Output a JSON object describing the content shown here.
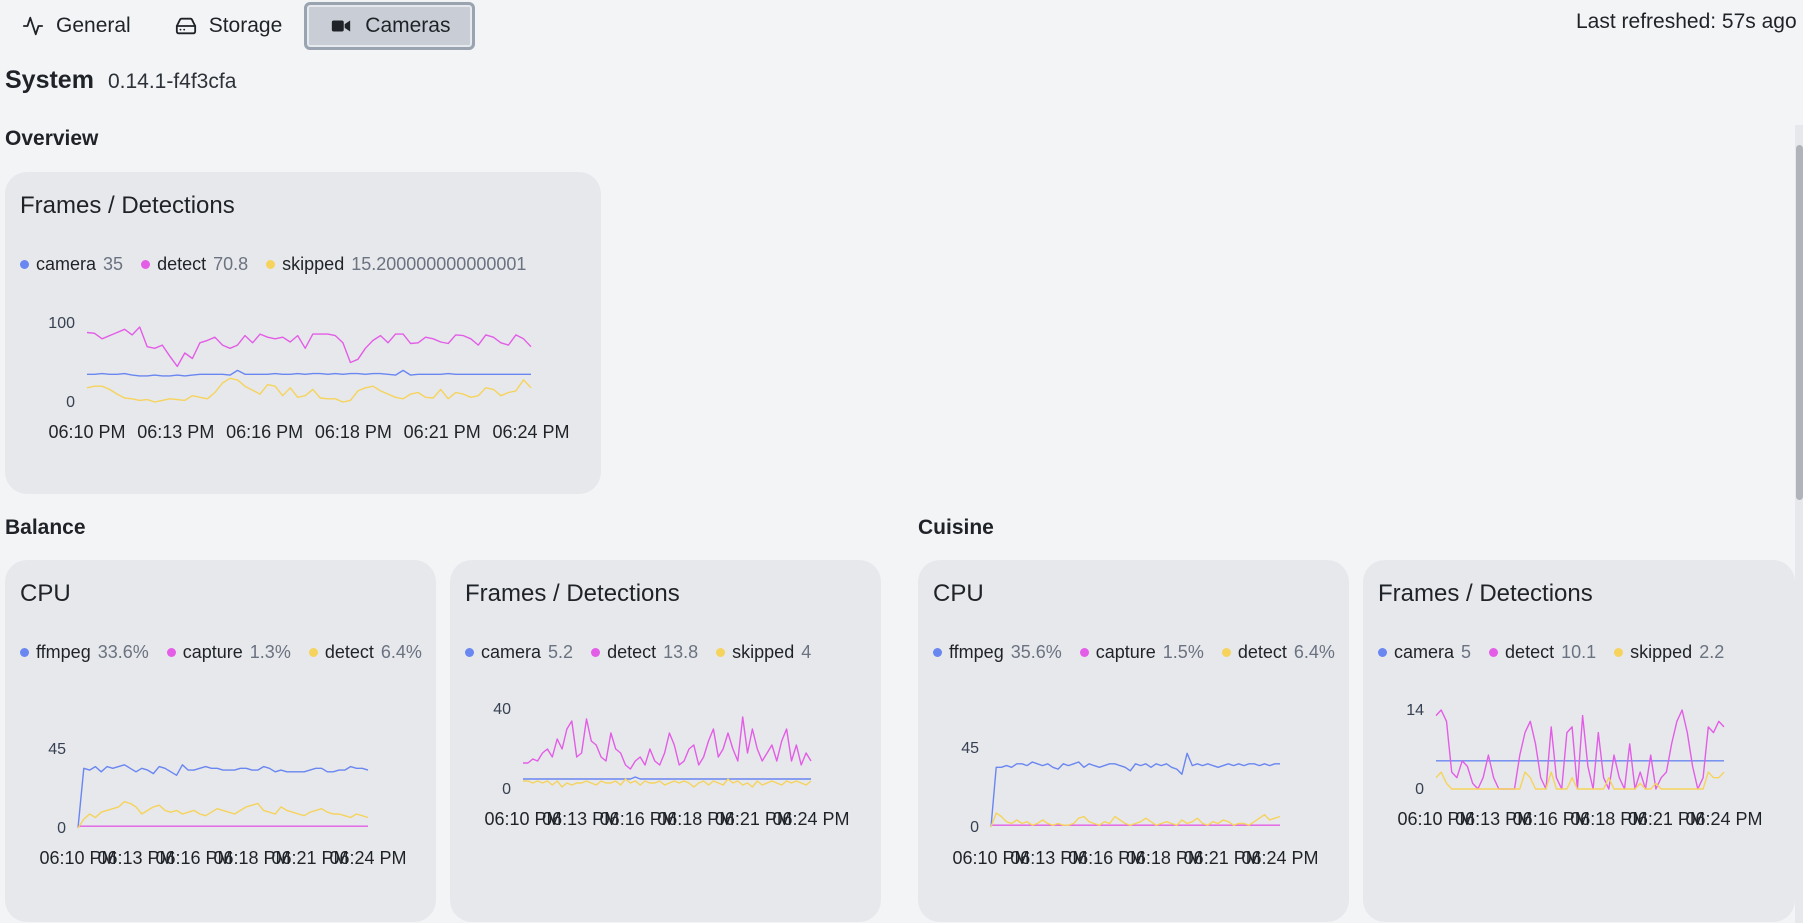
{
  "tabs": [
    {
      "label": "General",
      "icon": "activity-icon"
    },
    {
      "label": "Storage",
      "icon": "hard-drive-icon"
    },
    {
      "label": "Cameras",
      "icon": "video-camera-icon",
      "active": true
    }
  ],
  "last_refreshed": "Last refreshed: 57s ago",
  "system": {
    "title": "System",
    "version": "0.14.1-f4f3cfa"
  },
  "colors": {
    "blue": "#6a86f0",
    "magenta": "#e35de6",
    "yellow": "#f6d35c"
  },
  "sections": {
    "overview": "Overview",
    "balance": "Balance",
    "cuisine": "Cuisine"
  },
  "cards": {
    "overview_frames": {
      "title": "Frames / Detections",
      "legend": [
        {
          "name": "camera",
          "value": "35",
          "color": "#6a86f0"
        },
        {
          "name": "detect",
          "value": "70.8",
          "color": "#e35de6"
        },
        {
          "name": "skipped",
          "value": "15.200000000000001",
          "color": "#f6d35c"
        }
      ]
    },
    "balance_cpu": {
      "title": "CPU",
      "legend": [
        {
          "name": "ffmpeg",
          "value": "33.6%",
          "color": "#6a86f0"
        },
        {
          "name": "capture",
          "value": "1.3%",
          "color": "#e35de6"
        },
        {
          "name": "detect",
          "value": "6.4%",
          "color": "#f6d35c"
        }
      ]
    },
    "balance_frames": {
      "title": "Frames / Detections",
      "legend": [
        {
          "name": "camera",
          "value": "5.2",
          "color": "#6a86f0"
        },
        {
          "name": "detect",
          "value": "13.8",
          "color": "#e35de6"
        },
        {
          "name": "skipped",
          "value": "4",
          "color": "#f6d35c"
        }
      ]
    },
    "cuisine_cpu": {
      "title": "CPU",
      "legend": [
        {
          "name": "ffmpeg",
          "value": "35.6%",
          "color": "#6a86f0"
        },
        {
          "name": "capture",
          "value": "1.5%",
          "color": "#e35de6"
        },
        {
          "name": "detect",
          "value": "6.4%",
          "color": "#f6d35c"
        }
      ]
    },
    "cuisine_frames": {
      "title": "Frames / Detections",
      "legend": [
        {
          "name": "camera",
          "value": "5",
          "color": "#6a86f0"
        },
        {
          "name": "detect",
          "value": "10.1",
          "color": "#e35de6"
        },
        {
          "name": "skipped",
          "value": "2.2",
          "color": "#f6d35c"
        }
      ]
    }
  },
  "chart_data": [
    {
      "id": "overview_frames",
      "type": "line",
      "title": "Frames / Detections",
      "xlabel": "",
      "ylabel": "",
      "x_ticks": [
        "06:10 PM",
        "06:13 PM",
        "06:16 PM",
        "06:18 PM",
        "06:21 PM",
        "06:24 PM"
      ],
      "y_ticks": [
        "0",
        "100"
      ],
      "ylim": [
        0,
        100
      ],
      "series": [
        {
          "name": "camera",
          "color": "#6a86f0",
          "values": [
            35,
            35,
            36,
            35,
            35,
            36,
            34,
            33,
            33,
            34,
            33,
            33,
            34,
            33,
            34,
            35,
            35,
            35,
            35,
            34,
            40,
            35,
            35,
            35,
            35,
            36,
            35,
            35,
            36,
            35,
            36,
            36,
            35,
            36,
            35,
            36,
            36,
            35,
            36,
            36,
            35,
            34,
            40,
            34,
            35,
            35,
            35,
            35,
            36,
            35,
            35,
            35,
            35,
            35,
            35,
            35,
            35,
            35,
            35,
            35
          ]
        },
        {
          "name": "detect",
          "color": "#e35de6",
          "values": [
            88,
            87,
            80,
            84,
            88,
            92,
            85,
            95,
            70,
            68,
            72,
            58,
            45,
            62,
            55,
            75,
            78,
            82,
            72,
            68,
            72,
            84,
            75,
            86,
            82,
            80,
            82,
            76,
            84,
            68,
            86,
            86,
            86,
            84,
            75,
            50,
            54,
            68,
            78,
            84,
            75,
            86,
            86,
            74,
            75,
            82,
            80,
            76,
            74,
            85,
            84,
            80,
            72,
            85,
            82,
            75,
            72,
            85,
            80,
            70
          ]
        },
        {
          "name": "skipped",
          "color": "#f6d35c",
          "values": [
            18,
            20,
            20,
            16,
            10,
            5,
            4,
            2,
            3,
            0,
            2,
            4,
            3,
            2,
            8,
            6,
            4,
            12,
            24,
            30,
            28,
            20,
            15,
            10,
            22,
            20,
            8,
            18,
            6,
            8,
            16,
            5,
            4,
            4,
            0,
            2,
            14,
            18,
            20,
            14,
            10,
            6,
            4,
            10,
            12,
            6,
            5,
            16,
            4,
            12,
            10,
            6,
            8,
            18,
            16,
            8,
            12,
            14,
            28,
            18
          ]
        }
      ]
    },
    {
      "id": "balance_cpu",
      "type": "line",
      "title": "CPU",
      "x_ticks": [
        "06:10 PM",
        "06:13 PM",
        "06:16 PM",
        "06:18 PM",
        "06:21 PM",
        "06:24 PM"
      ],
      "y_ticks": [
        "0",
        "45"
      ],
      "ylim": [
        0,
        45
      ],
      "series": [
        {
          "name": "ffmpeg",
          "color": "#6a86f0",
          "values": [
            0,
            34,
            33,
            35,
            32,
            35,
            34,
            35,
            36,
            34,
            32,
            34,
            33,
            31,
            35,
            34,
            32,
            30,
            36,
            33,
            33,
            34,
            35,
            34,
            34,
            33,
            33,
            33,
            34,
            34,
            33,
            33,
            35,
            34,
            32,
            33,
            32,
            32,
            32,
            32,
            33,
            34,
            34,
            32,
            32,
            33,
            33,
            35,
            34,
            34,
            33
          ]
        },
        {
          "name": "capture",
          "color": "#e35de6",
          "values": [
            1,
            1,
            1,
            1,
            1,
            1,
            1,
            1,
            1,
            1,
            1,
            1,
            1,
            1,
            1,
            1,
            1,
            1,
            1,
            1,
            1,
            1,
            1,
            1,
            1,
            1,
            1,
            1,
            1,
            1,
            1,
            1,
            1,
            1,
            1,
            1,
            1,
            1,
            1,
            1,
            1,
            1,
            1,
            1,
            1,
            1,
            1,
            1,
            1,
            1,
            1
          ]
        },
        {
          "name": "detect",
          "color": "#f6d35c",
          "values": [
            0,
            5,
            8,
            6,
            9,
            10,
            11,
            12,
            15,
            14,
            12,
            8,
            10,
            12,
            13,
            10,
            9,
            10,
            8,
            9,
            10,
            8,
            7,
            9,
            11,
            10,
            9,
            8,
            10,
            12,
            13,
            14,
            10,
            9,
            8,
            12,
            10,
            9,
            8,
            7,
            9,
            10,
            11,
            9,
            8,
            8,
            7,
            6,
            8,
            7,
            6
          ]
        }
      ]
    },
    {
      "id": "balance_frames",
      "type": "line",
      "title": "Frames / Detections",
      "x_ticks": [
        "06:10 PM",
        "06:13 PM",
        "06:16 PM",
        "06:18 PM",
        "06:21 PM",
        "06:24 PM"
      ],
      "y_ticks": [
        "0",
        "40"
      ],
      "ylim": [
        0,
        40
      ],
      "series": [
        {
          "name": "camera",
          "color": "#6a86f0",
          "values": [
            5,
            5,
            5,
            5,
            5,
            5,
            5,
            5,
            5,
            5,
            5,
            5,
            5,
            5,
            5,
            5,
            5,
            5,
            5,
            5,
            5,
            5,
            5,
            6,
            5,
            5,
            5,
            5,
            5,
            5,
            5,
            5,
            5,
            5,
            5,
            5,
            5,
            5,
            5,
            5,
            5,
            5,
            5,
            5,
            5,
            5,
            5,
            5,
            5,
            5,
            5,
            5,
            5,
            5,
            5,
            5,
            5,
            5,
            5,
            5
          ]
        },
        {
          "name": "detect",
          "color": "#e35de6",
          "values": [
            13,
            13,
            15,
            14,
            18,
            20,
            16,
            25,
            20,
            30,
            34,
            16,
            18,
            35,
            24,
            22,
            16,
            14,
            28,
            20,
            18,
            12,
            10,
            14,
            16,
            12,
            20,
            14,
            12,
            18,
            28,
            22,
            12,
            14,
            20,
            22,
            12,
            16,
            24,
            30,
            16,
            20,
            28,
            20,
            14,
            36,
            18,
            30,
            20,
            14,
            18,
            22,
            14,
            24,
            30,
            14,
            22,
            12,
            18,
            14
          ]
        },
        {
          "name": "skipped",
          "color": "#f6d35c",
          "values": [
            4,
            4,
            3,
            4,
            3,
            4,
            2,
            4,
            1,
            3,
            2,
            3,
            3,
            4,
            3,
            2,
            4,
            3,
            3,
            4,
            2,
            5,
            3,
            4,
            2,
            4,
            3,
            3,
            4,
            2,
            3,
            4,
            3,
            4,
            3,
            1,
            3,
            4,
            2,
            4,
            3,
            2,
            5,
            3,
            4,
            2,
            3,
            1,
            4,
            2,
            3,
            4,
            3,
            2,
            4,
            3,
            4,
            3,
            2,
            4
          ]
        }
      ]
    },
    {
      "id": "cuisine_cpu",
      "type": "line",
      "title": "CPU",
      "x_ticks": [
        "06:10 PM",
        "06:13 PM",
        "06:16 PM",
        "06:18 PM",
        "06:21 PM",
        "06:24 PM"
      ],
      "y_ticks": [
        "0",
        "45"
      ],
      "ylim": [
        0,
        45
      ],
      "series": [
        {
          "name": "ffmpeg",
          "color": "#6a86f0",
          "values": [
            0,
            34,
            34,
            35,
            34,
            36,
            36,
            35,
            37,
            36,
            35,
            36,
            34,
            33,
            36,
            35,
            36,
            37,
            34,
            36,
            35,
            34,
            35,
            36,
            36,
            35,
            34,
            32,
            36,
            35,
            36,
            34,
            36,
            35,
            36,
            34,
            33,
            30,
            42,
            35,
            36,
            35,
            36,
            35,
            34,
            35,
            36,
            35,
            36,
            35,
            36,
            36,
            35,
            36,
            35,
            36,
            36
          ]
        },
        {
          "name": "capture",
          "color": "#e35de6",
          "values": [
            1,
            1,
            1,
            1,
            1,
            1,
            1,
            1,
            1,
            1,
            1,
            1,
            1,
            1,
            1,
            1,
            1,
            1,
            1,
            1,
            1,
            1,
            1,
            1,
            1,
            1,
            1,
            1,
            1,
            1,
            1,
            1,
            1,
            1,
            1,
            1,
            1,
            1,
            1,
            1,
            1,
            1,
            1,
            1,
            1,
            1,
            1,
            1,
            1,
            1,
            1,
            1,
            1,
            1,
            1,
            1,
            1
          ]
        },
        {
          "name": "detect",
          "color": "#f6d35c",
          "values": [
            0,
            8,
            6,
            3,
            2,
            4,
            2,
            3,
            1,
            2,
            4,
            2,
            1,
            2,
            1,
            1,
            2,
            5,
            6,
            3,
            2,
            1,
            3,
            2,
            6,
            4,
            2,
            1,
            2,
            3,
            5,
            3,
            1,
            2,
            3,
            2,
            1,
            4,
            2,
            3,
            5,
            2,
            1,
            3,
            2,
            4,
            3,
            1,
            2,
            2,
            1,
            3,
            5,
            7,
            4,
            5,
            6
          ]
        }
      ]
    },
    {
      "id": "cuisine_frames",
      "type": "line",
      "title": "Frames / Detections",
      "x_ticks": [
        "06:10 PM",
        "06:13 PM",
        "06:16 PM",
        "06:18 PM",
        "06:21 PM",
        "06:24 PM"
      ],
      "y_ticks": [
        "0",
        "14"
      ],
      "ylim": [
        0,
        14
      ],
      "series": [
        {
          "name": "camera",
          "color": "#6a86f0",
          "values": [
            5,
            5,
            5,
            5,
            5,
            5,
            5,
            5,
            5,
            5,
            5,
            5,
            5,
            5,
            5,
            5,
            5,
            5,
            5,
            5,
            5,
            5,
            5,
            5,
            5,
            5,
            5,
            5,
            5,
            5,
            5,
            5,
            5,
            5,
            5,
            5,
            5,
            5,
            5,
            5,
            5,
            5,
            5,
            5,
            5,
            5,
            5,
            5,
            5,
            5,
            5,
            5,
            5,
            5,
            5,
            5
          ]
        },
        {
          "name": "detect",
          "color": "#e35de6",
          "values": [
            13,
            14,
            12,
            3,
            2,
            5,
            4,
            1,
            0,
            2,
            6,
            2,
            0,
            0,
            0,
            0,
            6,
            10,
            12,
            8,
            2,
            0,
            11,
            2,
            0,
            10,
            11,
            0,
            13,
            4,
            0,
            10,
            2,
            0,
            6,
            2,
            0,
            8,
            0,
            3,
            0,
            6,
            0,
            2,
            3,
            8,
            12,
            14,
            10,
            4,
            0,
            2,
            11,
            10,
            12,
            11
          ]
        },
        {
          "name": "skipped",
          "color": "#f6d35c",
          "values": [
            2,
            3,
            1,
            0,
            0,
            0,
            0,
            0,
            0,
            0,
            0,
            0,
            0,
            0,
            0,
            0,
            0,
            3,
            2,
            0,
            0,
            0,
            3,
            0,
            0,
            0,
            2,
            0,
            0,
            0,
            0,
            0,
            0,
            2,
            0,
            0,
            0,
            0,
            0,
            1,
            0,
            0,
            1,
            0,
            0,
            0,
            0,
            0,
            0,
            0,
            0,
            0,
            3,
            2,
            2,
            3
          ]
        }
      ]
    }
  ]
}
